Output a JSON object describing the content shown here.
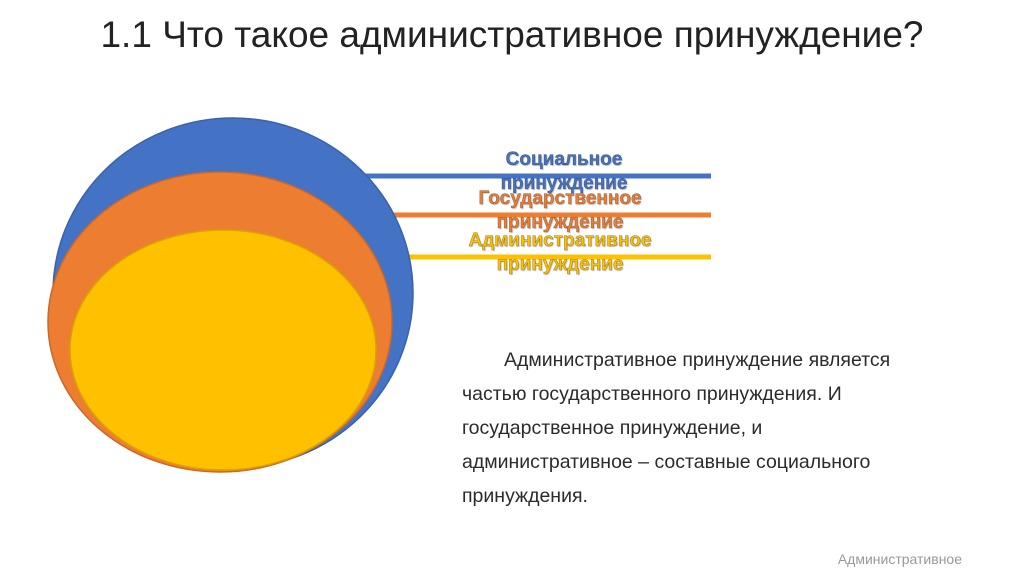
{
  "slide": {
    "title": "1.1 Что такое административное принуждение?"
  },
  "diagram": {
    "levels": [
      {
        "key": "social",
        "label_line1": "Социальное",
        "label_line2": "принуждение",
        "color": "#4472C4"
      },
      {
        "key": "state",
        "label_line1": "Государственное",
        "label_line2": "принуждение",
        "color": "#ED7D31"
      },
      {
        "key": "admin",
        "label_line1": "Административное",
        "label_line2": "принуждение",
        "color": "#FFC000"
      }
    ]
  },
  "body": {
    "paragraph": "Административное принуждение является частью государственного принуждения. И государственное принуждение, и административное – составные социального принуждения."
  },
  "footer": {
    "text": "Административное"
  }
}
